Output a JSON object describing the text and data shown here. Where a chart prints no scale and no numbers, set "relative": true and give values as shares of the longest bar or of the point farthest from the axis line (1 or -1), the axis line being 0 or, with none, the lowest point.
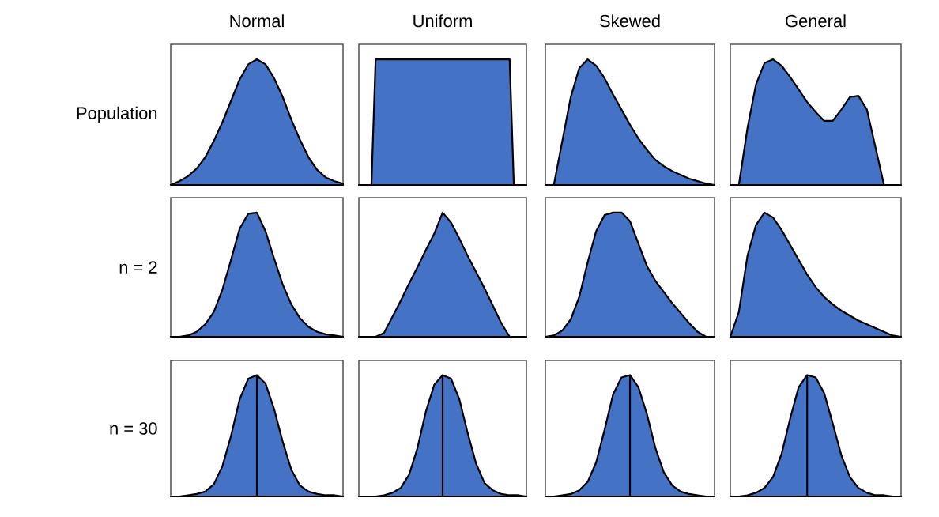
{
  "chart_data": [
    {
      "type": "area",
      "title": "Normal",
      "ylabel": "Population",
      "relative": true,
      "color": "#4472c4",
      "categories": [
        null,
        null,
        null,
        null,
        null,
        null,
        null,
        null,
        null,
        null,
        null,
        null,
        null,
        null,
        null,
        null,
        null,
        null,
        null,
        null,
        null
      ],
      "values": [
        0,
        0.03,
        0.07,
        0.13,
        0.22,
        0.35,
        0.5,
        0.67,
        0.84,
        0.96,
        1.0,
        0.96,
        0.85,
        0.7,
        0.52,
        0.36,
        0.22,
        0.12,
        0.06,
        0.03,
        0.01
      ]
    },
    {
      "type": "area",
      "title": "Uniform",
      "relative": true,
      "color": "#4472c4",
      "categories": [
        null,
        null,
        null,
        null,
        null,
        null,
        null,
        null,
        null,
        null,
        null,
        null,
        null,
        null,
        null,
        null,
        null,
        null,
        null,
        null,
        null,
        null,
        null,
        null,
        null,
        null,
        null,
        null,
        null,
        null,
        null,
        null,
        null,
        null,
        null,
        null,
        null,
        null,
        null,
        null,
        null
      ],
      "values": [
        0,
        0,
        0,
        0,
        1,
        1,
        1,
        1,
        1,
        1,
        1,
        1,
        1,
        1,
        1,
        1,
        1,
        1,
        1,
        1,
        1,
        1,
        1,
        1,
        1,
        1,
        1,
        1,
        1,
        1,
        1,
        1,
        1,
        1,
        1,
        1,
        1,
        0,
        0,
        0,
        0
      ]
    },
    {
      "type": "area",
      "title": "Skewed",
      "relative": true,
      "color": "#4472c4",
      "categories": [
        null,
        null,
        null,
        null,
        null,
        null,
        null,
        null,
        null,
        null,
        null,
        null,
        null,
        null,
        null,
        null,
        null,
        null,
        null,
        null,
        null
      ],
      "values": [
        0,
        0,
        0.35,
        0.7,
        0.93,
        1.0,
        0.95,
        0.85,
        0.72,
        0.6,
        0.48,
        0.37,
        0.28,
        0.2,
        0.15,
        0.11,
        0.08,
        0.05,
        0.03,
        0.01,
        0
      ]
    },
    {
      "type": "area",
      "title": "General",
      "relative": true,
      "color": "#4472c4",
      "categories": [
        null,
        null,
        null,
        null,
        null,
        null,
        null,
        null,
        null,
        null,
        null,
        null,
        null,
        null,
        null,
        null,
        null,
        null,
        null,
        null,
        null
      ],
      "values": [
        0,
        0,
        0.45,
        0.8,
        0.97,
        1.0,
        0.95,
        0.86,
        0.76,
        0.66,
        0.58,
        0.51,
        0.51,
        0.6,
        0.7,
        0.71,
        0.6,
        0.3,
        0,
        0,
        0
      ]
    },
    {
      "type": "area",
      "ylabel": "n = 2",
      "relative": true,
      "color": "#4472c4",
      "categories": [
        null,
        null,
        null,
        null,
        null,
        null,
        null,
        null,
        null,
        null,
        null,
        null,
        null,
        null,
        null,
        null,
        null,
        null,
        null,
        null,
        null
      ],
      "values": [
        0,
        0,
        0.01,
        0.04,
        0.1,
        0.2,
        0.38,
        0.62,
        0.87,
        0.99,
        1.0,
        0.85,
        0.63,
        0.42,
        0.26,
        0.15,
        0.08,
        0.04,
        0.02,
        0.01,
        0
      ]
    },
    {
      "type": "area",
      "relative": true,
      "color": "#4472c4",
      "categories": [
        null,
        null,
        null,
        null,
        null,
        null,
        null,
        null,
        null,
        null,
        null,
        null,
        null,
        null,
        null,
        null,
        null,
        null,
        null,
        null,
        null
      ],
      "values": [
        0,
        0,
        0,
        0.03,
        0.16,
        0.29,
        0.43,
        0.56,
        0.7,
        0.83,
        1.0,
        0.92,
        0.79,
        0.65,
        0.52,
        0.39,
        0.25,
        0.11,
        0,
        0,
        0
      ]
    },
    {
      "type": "area",
      "relative": true,
      "color": "#4472c4",
      "categories": [
        null,
        null,
        null,
        null,
        null,
        null,
        null,
        null,
        null,
        null,
        null,
        null,
        null,
        null,
        null,
        null,
        null,
        null,
        null,
        null,
        null
      ],
      "values": [
        0,
        0.01,
        0.05,
        0.14,
        0.32,
        0.6,
        0.85,
        0.98,
        1.0,
        1.0,
        0.93,
        0.75,
        0.57,
        0.45,
        0.36,
        0.27,
        0.19,
        0.11,
        0.04,
        0,
        0
      ]
    },
    {
      "type": "area",
      "relative": true,
      "color": "#4472c4",
      "categories": [
        null,
        null,
        null,
        null,
        null,
        null,
        null,
        null,
        null,
        null,
        null,
        null,
        null,
        null,
        null,
        null,
        null,
        null,
        null,
        null,
        null
      ],
      "values": [
        0,
        0.2,
        0.65,
        0.9,
        1.0,
        0.96,
        0.86,
        0.74,
        0.62,
        0.5,
        0.4,
        0.32,
        0.26,
        0.21,
        0.17,
        0.13,
        0.1,
        0.07,
        0.04,
        0.01,
        0
      ]
    },
    {
      "type": "area",
      "ylabel": "n = 30",
      "relative": true,
      "color": "#4472c4",
      "categories": [
        null,
        null,
        null,
        null,
        null,
        null,
        null,
        null,
        null,
        null,
        null,
        null,
        null,
        null,
        null,
        null,
        null,
        null,
        null,
        null,
        null
      ],
      "values": [
        0,
        0,
        0.01,
        0.02,
        0.04,
        0.1,
        0.25,
        0.5,
        0.8,
        0.97,
        1.0,
        0.93,
        0.72,
        0.45,
        0.22,
        0.09,
        0.04,
        0.02,
        0.01,
        0.01,
        0
      ]
    },
    {
      "type": "area",
      "relative": true,
      "color": "#4472c4",
      "categories": [
        null,
        null,
        null,
        null,
        null,
        null,
        null,
        null,
        null,
        null,
        null,
        null,
        null,
        null,
        null,
        null,
        null,
        null,
        null,
        null,
        null
      ],
      "values": [
        0,
        0,
        0,
        0.01,
        0.03,
        0.07,
        0.18,
        0.4,
        0.7,
        0.92,
        1.0,
        0.97,
        0.8,
        0.52,
        0.27,
        0.11,
        0.05,
        0.02,
        0.01,
        0.01,
        0
      ]
    },
    {
      "type": "area",
      "relative": true,
      "color": "#4472c4",
      "categories": [
        null,
        null,
        null,
        null,
        null,
        null,
        null,
        null,
        null,
        null,
        null,
        null,
        null,
        null,
        null,
        null,
        null,
        null,
        null,
        null,
        null
      ],
      "values": [
        0,
        0,
        0.01,
        0.02,
        0.05,
        0.12,
        0.28,
        0.55,
        0.84,
        0.98,
        1.0,
        0.9,
        0.68,
        0.4,
        0.2,
        0.09,
        0.04,
        0.02,
        0.01,
        0,
        0
      ]
    },
    {
      "type": "area",
      "relative": true,
      "color": "#4472c4",
      "categories": [
        null,
        null,
        null,
        null,
        null,
        null,
        null,
        null,
        null,
        null,
        null,
        null,
        null,
        null,
        null,
        null,
        null,
        null,
        null,
        null,
        null
      ],
      "values": [
        0,
        0,
        0.01,
        0.03,
        0.07,
        0.16,
        0.35,
        0.64,
        0.9,
        1.0,
        0.98,
        0.85,
        0.6,
        0.34,
        0.16,
        0.07,
        0.03,
        0.01,
        0.01,
        0,
        0
      ]
    }
  ]
}
